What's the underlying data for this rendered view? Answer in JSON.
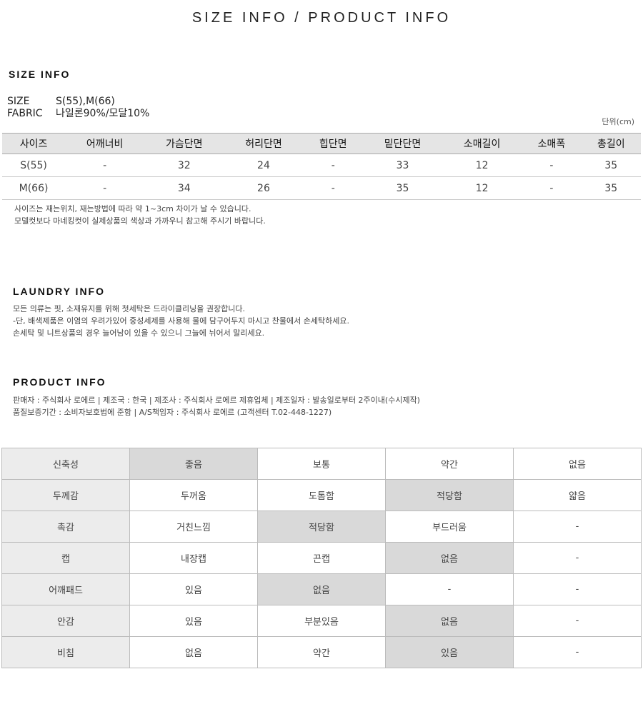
{
  "title": "SIZE INFO / PRODUCT INFO",
  "size_info": {
    "heading": "SIZE INFO",
    "size_label": "SIZE",
    "size_value": "S(55),M(66)",
    "fabric_label": "FABRIC",
    "fabric_value": "나일론90%/모달10%",
    "unit": "단위(cm)",
    "headers": [
      "사이즈",
      "어깨너비",
      "가슴단면",
      "허리단면",
      "힙단면",
      "밑단단면",
      "소매길이",
      "소매폭",
      "총길이"
    ],
    "rows": [
      [
        "S(55)",
        "-",
        "32",
        "24",
        "-",
        "33",
        "12",
        "-",
        "35"
      ],
      [
        "M(66)",
        "-",
        "34",
        "26",
        "-",
        "35",
        "12",
        "-",
        "35"
      ]
    ],
    "notes": [
      "사이즈는 재는위치, 재는방법에 따라 약 1~3cm 차이가 날 수 있습니다.",
      "모델컷보다 마네킹컷이 실제상품의 색상과 가까우니 참고해 주시기 바랍니다."
    ]
  },
  "laundry": {
    "heading": "LAUNDRY INFO",
    "lines": [
      "모든 의류는 핏, 소재유지를 위해 첫세탁은 드라이클리닝을 권장합니다.",
      "-단, 배색제품은 이염의 우려가있어 중성세제를 사용해 물에 담구어두지 마시고 찬물에서 손세탁하세요.",
      "손세탁 및 니트상품의 경우 늘어남이 있을 수 있으니 그늘에 뉘어서 말리세요."
    ]
  },
  "product": {
    "heading": "PRODUCT INFO",
    "lines": [
      "판매자 : 주식회사 로에르 | 제조국 : 한국 | 제조사 : 주식회사 로에르 제휴업체 | 제조일자 : 발송일로부터 2주이내(수시제작)",
      "품질보증기간 : 소비자보호법에 준함 | A/S책임자 : 주식회사 로에르 (고객센터 T.02-448-1227)"
    ]
  },
  "attributes": [
    {
      "label": "신축성",
      "options": [
        "좋음",
        "보통",
        "약간",
        "없음"
      ],
      "selected": 0
    },
    {
      "label": "두께감",
      "options": [
        "두꺼움",
        "도톰함",
        "적당함",
        "얇음"
      ],
      "selected": 2
    },
    {
      "label": "촉감",
      "options": [
        "거친느낌",
        "적당함",
        "부드러움",
        "-"
      ],
      "selected": 1
    },
    {
      "label": "캡",
      "options": [
        "내장캡",
        "끈캡",
        "없음",
        "-"
      ],
      "selected": 2
    },
    {
      "label": "어깨패드",
      "options": [
        "있음",
        "없음",
        "-",
        "-"
      ],
      "selected": 1
    },
    {
      "label": "안감",
      "options": [
        "있음",
        "부분있음",
        "없음",
        "-"
      ],
      "selected": 2
    },
    {
      "label": "비침",
      "options": [
        "없음",
        "약간",
        "있음",
        "-"
      ],
      "selected": 2
    }
  ],
  "colors": {
    "header_bg": "#e5e5e5",
    "selected_bg": "#d9d9d9",
    "label_bg": "#ececec"
  }
}
